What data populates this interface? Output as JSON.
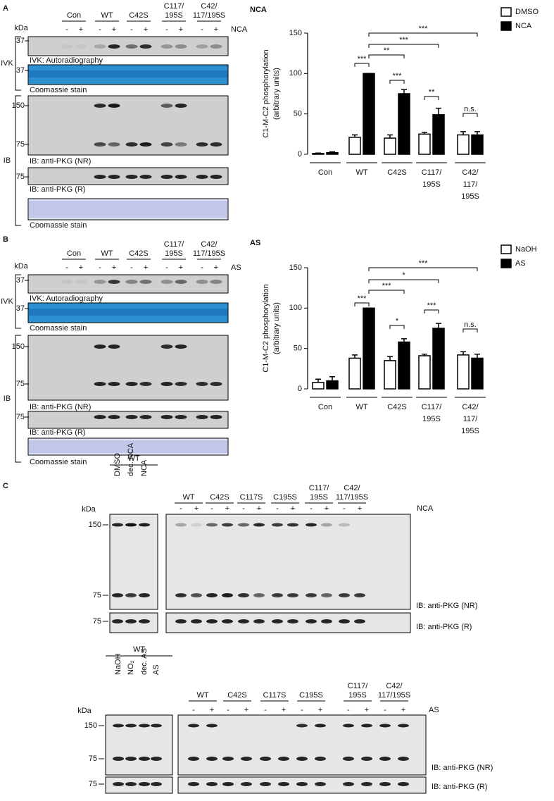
{
  "panel_a": {
    "letter": "A",
    "kda": "kDa",
    "groups": [
      "Con",
      "WT",
      "C42S",
      [
        "C117/",
        "195S"
      ],
      [
        "C42/",
        "117/195S"
      ]
    ],
    "signs": [
      "-",
      "+"
    ],
    "treatment": "NCA",
    "side_labels": [
      "IVK",
      "IB"
    ],
    "blots": [
      {
        "markers": [
          "37"
        ],
        "caption": "IVK: Autoradiography"
      },
      {
        "markers": [
          "37"
        ],
        "caption": "Coomassie stain"
      },
      {
        "markers": [
          "150",
          "75"
        ],
        "caption": "IB: anti-PKG (NR)"
      },
      {
        "markers": [
          "75"
        ],
        "caption": "IB: anti-PKG (R)"
      },
      {
        "caption": "Coomassie stain"
      }
    ]
  },
  "panel_b": {
    "letter": "B",
    "kda": "kDa",
    "groups": [
      "Con",
      "WT",
      "C42S",
      [
        "C117/",
        "195S"
      ],
      [
        "C42/",
        "117/195S"
      ]
    ],
    "signs": [
      "-",
      "+"
    ],
    "treatment": "AS",
    "side_labels": [
      "IVK",
      "IB"
    ],
    "blots": [
      {
        "markers": [
          "37"
        ],
        "caption": "IVK: Autoradiography"
      },
      {
        "markers": [
          "37"
        ],
        "caption": "Coomassie stain"
      },
      {
        "markers": [
          "150",
          "75"
        ],
        "caption": "IB: anti-PKG (NR)"
      },
      {
        "markers": [
          "75"
        ],
        "caption": "IB: anti-PKG (R)"
      },
      {
        "caption": "Coomassie stain"
      }
    ]
  },
  "panel_c": {
    "letter": "C",
    "top": {
      "left_header": "WT",
      "left_lanes": [
        "DMSO",
        "dec. NCA",
        "NCA"
      ],
      "groups": [
        "WT",
        "C42S",
        "C117S",
        "C195S",
        [
          "C117/",
          "195S"
        ],
        [
          "C42/",
          "117/195S"
        ]
      ],
      "signs": [
        "-",
        "+"
      ],
      "treatment": "NCA",
      "kda": "kDa",
      "markers": [
        "150",
        "75",
        "75"
      ],
      "captions": [
        "IB: anti-PKG (NR)",
        "IB: anti-PKG (R)"
      ]
    },
    "bottom": {
      "left_header": "WT",
      "left_lanes": [
        "NaOH",
        "NO₂",
        "dec. AS",
        "AS"
      ],
      "groups": [
        "WT",
        "C42S",
        "C117S",
        "C195S",
        [
          "C117/",
          "195S"
        ],
        [
          "C42/",
          "117/195S"
        ]
      ],
      "signs": [
        "-",
        "+"
      ],
      "treatment": "AS",
      "kda": "kDa",
      "markers": [
        "150",
        "75",
        "75"
      ],
      "captions": [
        "IB: anti-PKG (NR)",
        "IB: anti-PKG (R)"
      ]
    }
  },
  "chart_data": [
    {
      "type": "bar",
      "title": "NCA",
      "ylabel": [
        "C1-M-C2 phosphorylation",
        "(arbitrary units)"
      ],
      "categories": [
        [
          "Con"
        ],
        [
          "WT"
        ],
        [
          "C42S"
        ],
        [
          "C117/",
          "195S"
        ],
        [
          "C42/",
          "117/",
          "195S"
        ]
      ],
      "series": [
        {
          "name": "DMSO",
          "color": "#ffffff",
          "values": [
            1,
            21,
            20,
            25,
            24
          ],
          "errors": [
            0.5,
            3,
            4,
            2,
            4
          ]
        },
        {
          "name": "NCA",
          "color": "#000000",
          "values": [
            2,
            100,
            75,
            49,
            24
          ],
          "errors": [
            1,
            0,
            5,
            8,
            4
          ]
        }
      ],
      "ylim": [
        0,
        150
      ],
      "yticks": [
        0,
        50,
        100,
        150
      ],
      "significance": [
        "***",
        "***",
        "**",
        "n.s.",
        "**",
        "***",
        "***"
      ]
    },
    {
      "type": "bar",
      "title": "AS",
      "ylabel": [
        "C1-M-C2 phosphorylation",
        "(arbitrary units)"
      ],
      "categories": [
        [
          "Con"
        ],
        [
          "WT"
        ],
        [
          "C42S"
        ],
        [
          "C117/",
          "195S"
        ],
        [
          "C42/",
          "117/",
          "195S"
        ]
      ],
      "series": [
        {
          "name": "NaOH",
          "color": "#ffffff",
          "values": [
            8,
            38,
            35,
            41,
            42
          ],
          "errors": [
            4,
            4,
            5,
            2,
            4
          ]
        },
        {
          "name": "AS",
          "color": "#000000",
          "values": [
            10,
            100,
            58,
            75,
            38
          ],
          "errors": [
            5,
            0,
            4,
            6,
            5
          ]
        }
      ],
      "ylim": [
        0,
        150
      ],
      "yticks": [
        0,
        50,
        100,
        150
      ],
      "significance": [
        "***",
        "*",
        "***",
        "n.s.",
        "***",
        "*",
        "***"
      ]
    }
  ]
}
